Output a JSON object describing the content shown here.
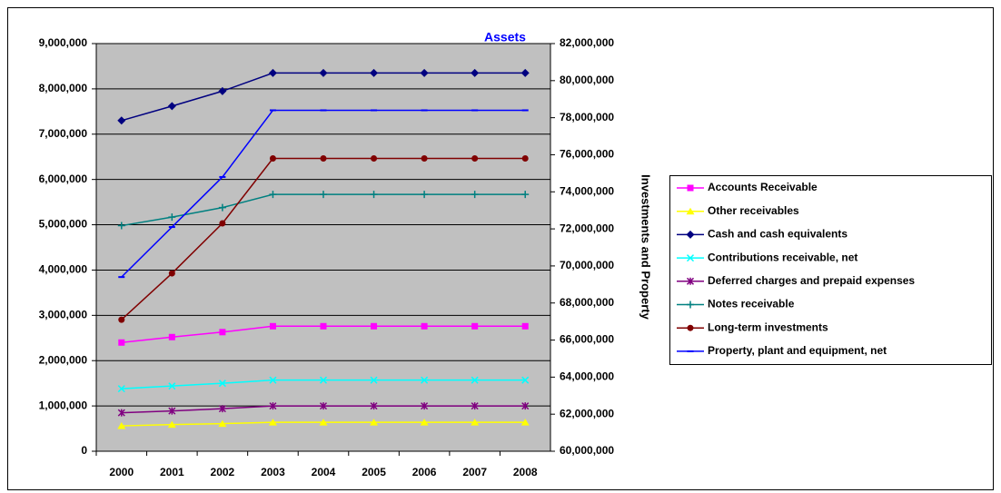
{
  "chart_data": {
    "type": "line",
    "title": "Assets",
    "y2label": "Investments and Property",
    "categories": [
      "2000",
      "2001",
      "2002",
      "2003",
      "2004",
      "2005",
      "2006",
      "2007",
      "2008"
    ],
    "ylim": [
      0,
      9000000
    ],
    "yticks": [
      {
        "value": 0,
        "label": "0"
      },
      {
        "value": 1000000,
        "label": "1,000,000"
      },
      {
        "value": 2000000,
        "label": "2,000,000"
      },
      {
        "value": 3000000,
        "label": "3,000,000"
      },
      {
        "value": 4000000,
        "label": "4,000,000"
      },
      {
        "value": 5000000,
        "label": "5,000,000"
      },
      {
        "value": 6000000,
        "label": "6,000,000"
      },
      {
        "value": 7000000,
        "label": "7,000,000"
      },
      {
        "value": 8000000,
        "label": "8,000,000"
      },
      {
        "value": 9000000,
        "label": "9,000,000"
      }
    ],
    "y2lim": [
      60000000,
      82000000
    ],
    "y2ticks": [
      {
        "value": 60000000,
        "label": "60,000,000"
      },
      {
        "value": 62000000,
        "label": "62,000,000"
      },
      {
        "value": 64000000,
        "label": "64,000,000"
      },
      {
        "value": 66000000,
        "label": "66,000,000"
      },
      {
        "value": 68000000,
        "label": "68,000,000"
      },
      {
        "value": 70000000,
        "label": "70,000,000"
      },
      {
        "value": 72000000,
        "label": "72,000,000"
      },
      {
        "value": 74000000,
        "label": "74,000,000"
      },
      {
        "value": 76000000,
        "label": "76,000,000"
      },
      {
        "value": 78000000,
        "label": "78,000,000"
      },
      {
        "value": 80000000,
        "label": "80,000,000"
      },
      {
        "value": 82000000,
        "label": "82,000,000"
      }
    ],
    "grid": true,
    "legend": "right",
    "series": [
      {
        "name": "Accounts Receivable",
        "color": "#ff00ff",
        "marker": "square",
        "values": [
          2400000,
          2520000,
          2630000,
          2760000,
          2760000,
          2760000,
          2760000,
          2760000,
          2760000
        ]
      },
      {
        "name": "Other receivables",
        "color": "#ffff00",
        "marker": "triangle",
        "values": [
          560000,
          590000,
          610000,
          640000,
          640000,
          640000,
          640000,
          640000,
          640000
        ]
      },
      {
        "name": "Cash and cash equivalents",
        "color": "#000080",
        "marker": "diamond",
        "values": [
          7300000,
          7620000,
          7950000,
          8350000,
          8350000,
          8350000,
          8350000,
          8350000,
          8350000
        ]
      },
      {
        "name": "Contributions receivable, net",
        "color": "#00ffff",
        "marker": "x",
        "values": [
          1380000,
          1440000,
          1500000,
          1570000,
          1570000,
          1570000,
          1570000,
          1570000,
          1570000
        ]
      },
      {
        "name": "Deferred charges and prepaid expenses",
        "color": "#800080",
        "marker": "star",
        "values": [
          850000,
          890000,
          940000,
          1000000,
          1000000,
          1000000,
          1000000,
          1000000,
          1000000
        ]
      },
      {
        "name": "Notes receivable",
        "color": "#008080",
        "marker": "plus",
        "values": [
          4980000,
          5170000,
          5380000,
          5670000,
          5670000,
          5670000,
          5670000,
          5670000,
          5670000
        ]
      },
      {
        "name": "Long-term investments",
        "color": "#800000",
        "marker": "circle",
        "axis": "y2",
        "values": [
          67100000,
          69600000,
          72300000,
          75800000,
          75800000,
          75800000,
          75800000,
          75800000,
          75800000
        ]
      },
      {
        "name": "Property, plant and equipment, net",
        "color": "#0000ff",
        "marker": "dash",
        "axis": "y2",
        "values": [
          69400000,
          72100000,
          74800000,
          78400000,
          78400000,
          78400000,
          78400000,
          78400000,
          78400000
        ]
      }
    ]
  }
}
